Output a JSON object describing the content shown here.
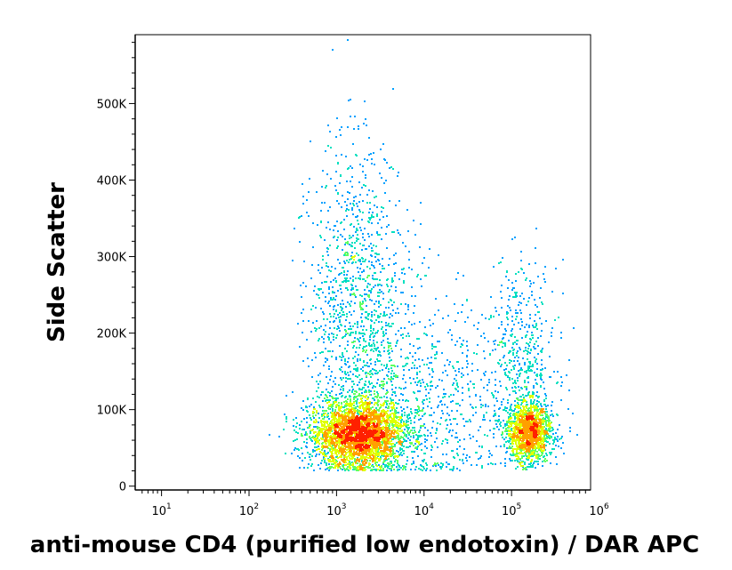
{
  "chart_data": {
    "type": "scatter",
    "title": "",
    "xlabel": "anti-mouse CD4 (purified low endotoxin) / DAR APC",
    "ylabel": "Side Scatter",
    "x_scale": "log",
    "xlim": [
      5,
      800000
    ],
    "ylim": [
      -5000,
      590000
    ],
    "x_ticks": [
      {
        "base": "10",
        "exp": "1",
        "value": 10
      },
      {
        "base": "10",
        "exp": "2",
        "value": 100
      },
      {
        "base": "10",
        "exp": "3",
        "value": 1000
      },
      {
        "base": "10",
        "exp": "4",
        "value": 10000
      },
      {
        "base": "10",
        "exp": "5",
        "value": 100000
      },
      {
        "base": "10",
        "exp": "6",
        "value": 1000000
      }
    ],
    "y_ticks": [
      {
        "label": "0",
        "value": 0
      },
      {
        "label": "100K",
        "value": 100000
      },
      {
        "label": "200K",
        "value": 200000
      },
      {
        "label": "300K",
        "value": 300000
      },
      {
        "label": "400K",
        "value": 400000
      },
      {
        "label": "500K",
        "value": 500000
      }
    ],
    "grid": false,
    "density_colormap": [
      "#0000ff",
      "#00a0ff",
      "#00e0c0",
      "#60ff60",
      "#e0ff00",
      "#ffa000",
      "#ff2000"
    ],
    "populations": [
      {
        "x_center": 1800,
        "x_log_spread": 0.28,
        "y_center": 68000,
        "y_spread": 22000,
        "count": 4200
      },
      {
        "x_center": 1800,
        "x_log_spread": 0.3,
        "y_center": 220000,
        "y_spread": 110000,
        "count": 1400
      },
      {
        "x_center": 160000,
        "x_log_spread": 0.13,
        "y_center": 70000,
        "y_spread": 20000,
        "count": 1500
      },
      {
        "x_center": 130000,
        "x_log_spread": 0.2,
        "y_center": 170000,
        "y_spread": 60000,
        "count": 450
      },
      {
        "x_center": 15000,
        "x_log_spread": 0.45,
        "y_center": 110000,
        "y_spread": 60000,
        "count": 600
      }
    ]
  }
}
